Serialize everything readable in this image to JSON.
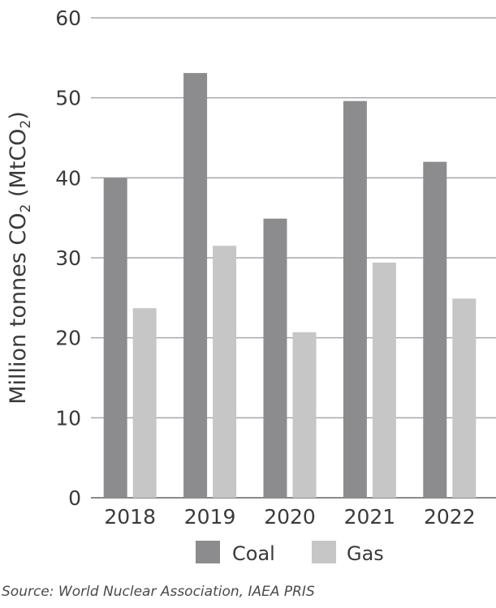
{
  "chart_data": {
    "type": "bar",
    "categories": [
      "2018",
      "2019",
      "2020",
      "2021",
      "2022"
    ],
    "series": [
      {
        "name": "Coal",
        "values": [
          40.0,
          53.1,
          34.9,
          49.6,
          42.0
        ],
        "color": "#8c8c8e"
      },
      {
        "name": "Gas",
        "values": [
          23.7,
          31.5,
          20.7,
          29.4,
          24.9
        ],
        "color": "#c6c6c7"
      }
    ],
    "ylabel": {
      "prefix": "Million tonnes CO",
      "sub1": "2",
      "middle": " (MtCO",
      "sub2": "2",
      "suffix": ")"
    },
    "ylim": [
      0,
      60
    ],
    "yticks": [
      "0",
      "10",
      "20",
      "30",
      "40",
      "50",
      "60"
    ],
    "grid": true,
    "legend": "bottom",
    "source": "Source: World Nuclear Association, IAEA PRIS"
  }
}
